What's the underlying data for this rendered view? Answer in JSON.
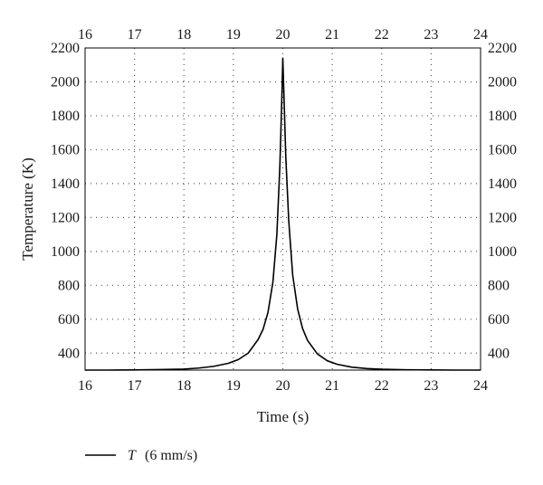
{
  "chart_data": {
    "type": "line",
    "xlabel": "Time (s)",
    "ylabel": "Temperature (K)",
    "xlim": [
      16,
      24
    ],
    "ylim": [
      300,
      2200
    ],
    "x_ticks": [
      16,
      17,
      18,
      19,
      20,
      21,
      22,
      23,
      24
    ],
    "y_ticks": [
      400,
      600,
      800,
      1000,
      1200,
      1400,
      1600,
      1800,
      2000,
      2200
    ],
    "grid": true,
    "grid_style": "dotted",
    "legend_position": "bottom-left",
    "legend": {
      "symbol": "T",
      "text": "(6 mm/s)"
    },
    "series": [
      {
        "name": "T (6 mm/s)",
        "color": "#000000",
        "x": [
          16.0,
          16.5,
          17.0,
          17.5,
          18.0,
          18.3,
          18.6,
          18.9,
          19.1,
          19.3,
          19.5,
          19.6,
          19.7,
          19.8,
          19.88,
          19.94,
          19.98,
          20.0,
          20.02,
          20.06,
          20.12,
          20.2,
          20.3,
          20.4,
          20.5,
          20.7,
          20.9,
          21.1,
          21.4,
          21.7,
          22.0,
          22.5,
          23.0,
          23.5,
          24.0
        ],
        "y": [
          300,
          300,
          301,
          303,
          306,
          312,
          322,
          340,
          362,
          400,
          480,
          540,
          640,
          820,
          1100,
          1500,
          1900,
          2140,
          1950,
          1560,
          1180,
          860,
          660,
          545,
          475,
          395,
          355,
          334,
          317,
          309,
          305,
          302,
          301,
          300,
          300
        ]
      }
    ]
  }
}
